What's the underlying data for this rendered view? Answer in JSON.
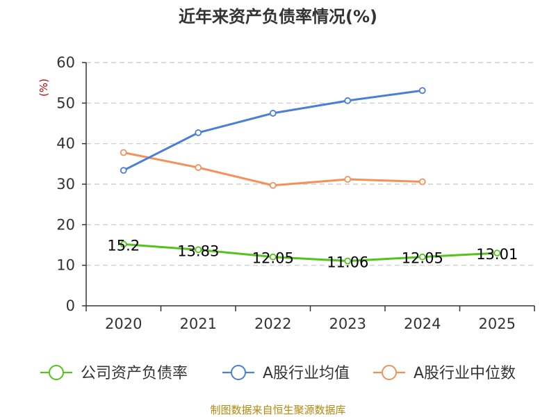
{
  "chart_data": {
    "type": "line",
    "title": "近年来资产负债率情况(%)",
    "ylabel": "(%)",
    "categories": [
      "2020",
      "2021",
      "2022",
      "2023",
      "2024",
      "2025"
    ],
    "ylim": [
      0,
      60
    ],
    "yticks": [
      "0",
      "10",
      "20",
      "30",
      "40",
      "50",
      "60"
    ],
    "grid": true,
    "legend_position": "bottom",
    "series": [
      {
        "name": "公司资产负债率",
        "color": "#52c41a",
        "values": [
          15.2,
          13.83,
          12.05,
          11.06,
          12.05,
          13.01
        ],
        "labels": [
          "15.2",
          "13.83",
          "12.05",
          "11.06",
          "12.05",
          "13.01"
        ]
      },
      {
        "name": "A股行业均值",
        "color": "#4a7fd8",
        "values": [
          33.4,
          42.7,
          47.5,
          50.6,
          53.1,
          null
        ]
      },
      {
        "name": "A股行业中位数",
        "color": "#f5905a",
        "values": [
          37.8,
          34.1,
          29.7,
          31.2,
          30.6,
          null
        ]
      }
    ],
    "source": "制图数据来自恒生聚源数据库"
  }
}
